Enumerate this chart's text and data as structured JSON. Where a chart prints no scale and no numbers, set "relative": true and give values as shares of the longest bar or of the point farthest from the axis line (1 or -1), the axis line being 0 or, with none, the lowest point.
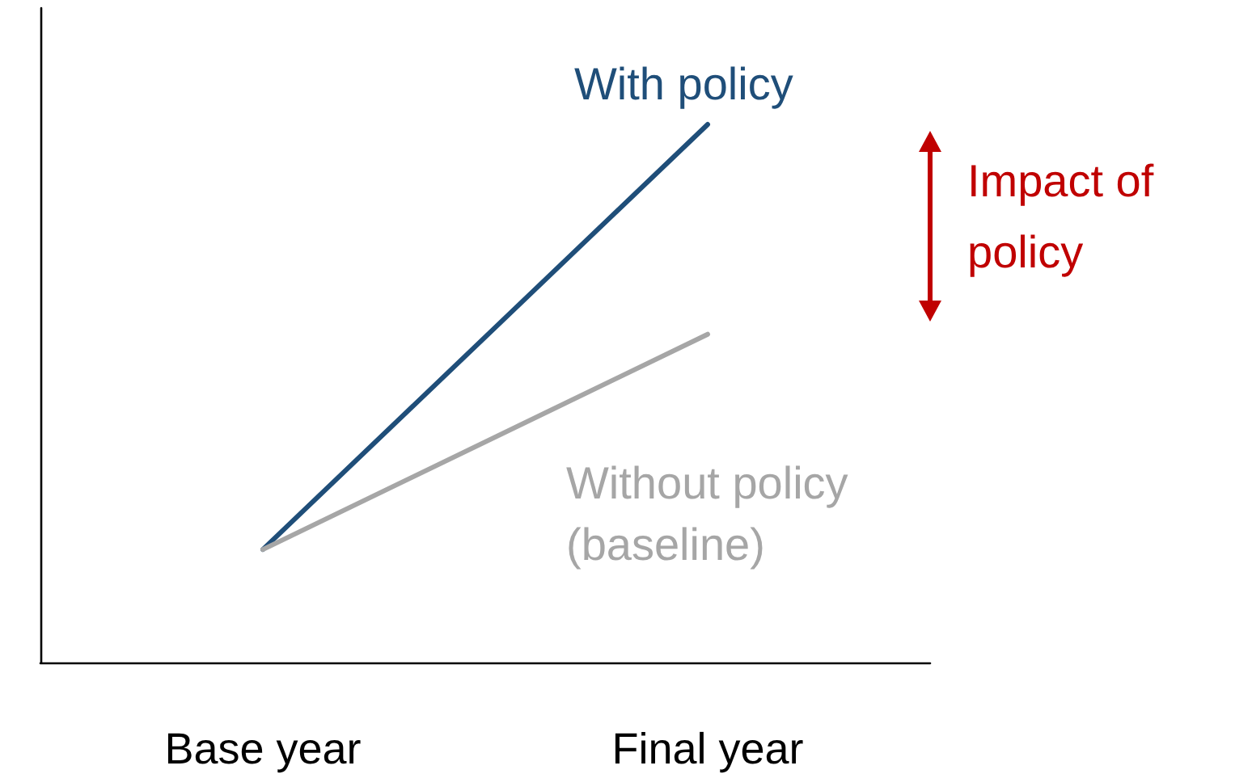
{
  "chart_data": {
    "type": "line",
    "relative": true,
    "categories": [
      "Base year",
      "Final year"
    ],
    "series": [
      {
        "name": "With policy",
        "color": "#1f4e79",
        "values": [
          0.21,
          1
        ]
      },
      {
        "name": "Without policy (baseline)",
        "color": "#a6a6a6",
        "values": [
          0.21,
          0.61
        ]
      }
    ],
    "annotations": [
      "Impact of policy"
    ]
  }
}
